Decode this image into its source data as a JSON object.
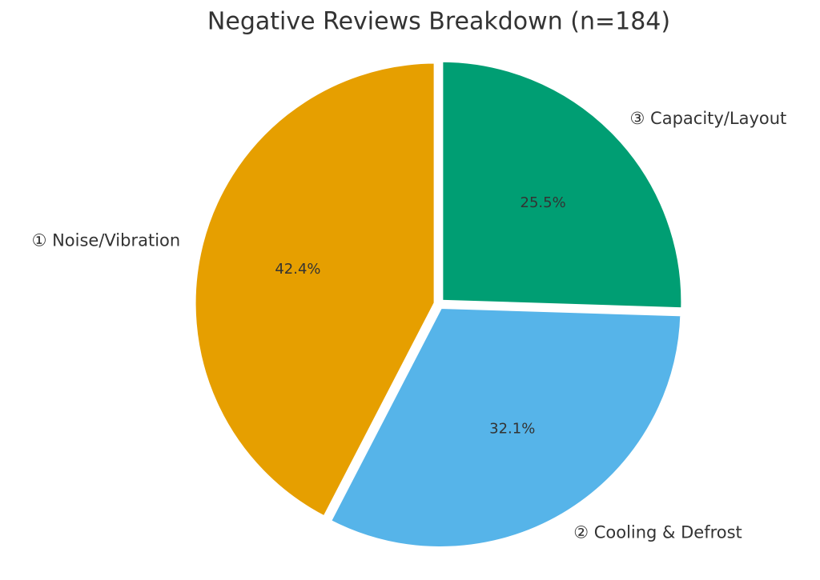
{
  "chart_data": {
    "type": "pie",
    "title": "Negative Reviews Breakdown (n=184)",
    "categories": [
      "① Noise/Vibration",
      "② Cooling & Defrost",
      "③ Capacity/Layout"
    ],
    "values": [
      42.4,
      32.1,
      25.5
    ],
    "value_labels": [
      "42.4%",
      "32.1%",
      "25.5%"
    ],
    "colors": [
      "#E69F00",
      "#56B4E9",
      "#009E73"
    ]
  }
}
